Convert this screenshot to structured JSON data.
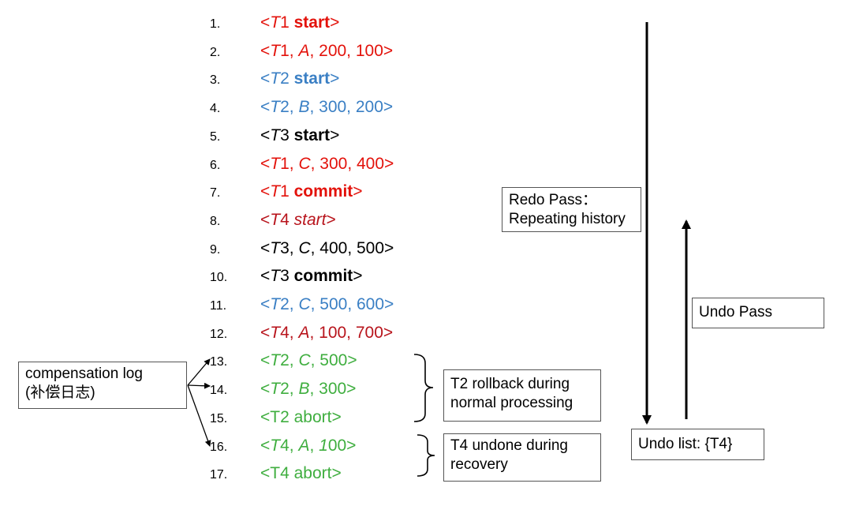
{
  "log": [
    {
      "num": "1.",
      "color": "#e3120b",
      "parts": [
        {
          "t": "<",
          "s": ""
        },
        {
          "t": "T",
          "s": "it"
        },
        {
          "t": "1 ",
          "s": ""
        },
        {
          "t": "start",
          "s": "b"
        },
        {
          "t": ">",
          "s": ""
        }
      ]
    },
    {
      "num": "2.",
      "color": "#e3120b",
      "parts": [
        {
          "t": "<",
          "s": ""
        },
        {
          "t": "T",
          "s": "it"
        },
        {
          "t": "1, ",
          "s": ""
        },
        {
          "t": "A",
          "s": "it"
        },
        {
          "t": ", 200, 100>",
          "s": ""
        }
      ]
    },
    {
      "num": "3.",
      "color": "#3a7fc4",
      "parts": [
        {
          "t": "<",
          "s": ""
        },
        {
          "t": "T",
          "s": "it"
        },
        {
          "t": "2 ",
          "s": ""
        },
        {
          "t": "start",
          "s": "b"
        },
        {
          "t": ">",
          "s": ""
        }
      ]
    },
    {
      "num": "4.",
      "color": "#3a7fc4",
      "parts": [
        {
          "t": "<",
          "s": ""
        },
        {
          "t": "T",
          "s": "it"
        },
        {
          "t": "2, ",
          "s": ""
        },
        {
          "t": "B",
          "s": "it"
        },
        {
          "t": ", 300, 200>",
          "s": ""
        }
      ]
    },
    {
      "num": "5.",
      "color": "#000000",
      "parts": [
        {
          "t": "<",
          "s": ""
        },
        {
          "t": "T",
          "s": "it"
        },
        {
          "t": "3 ",
          "s": ""
        },
        {
          "t": "start",
          "s": "b"
        },
        {
          "t": ">",
          "s": ""
        }
      ]
    },
    {
      "num": "6.",
      "color": "#e3120b",
      "parts": [
        {
          "t": "<",
          "s": ""
        },
        {
          "t": "T",
          "s": "it"
        },
        {
          "t": "1, ",
          "s": ""
        },
        {
          "t": "C",
          "s": "it"
        },
        {
          "t": ", 300, 400>",
          "s": ""
        }
      ]
    },
    {
      "num": "7.",
      "color": "#e3120b",
      "parts": [
        {
          "t": "<",
          "s": ""
        },
        {
          "t": "T",
          "s": "it"
        },
        {
          "t": "1 ",
          "s": ""
        },
        {
          "t": "commit",
          "s": "b"
        },
        {
          "t": ">",
          "s": ""
        }
      ]
    },
    {
      "num": "8.",
      "color": "#b8141c",
      "parts": [
        {
          "t": "<",
          "s": ""
        },
        {
          "t": "T",
          "s": "it"
        },
        {
          "t": "4 ",
          "s": ""
        },
        {
          "t": "start",
          "s": "it"
        },
        {
          "t": ">",
          "s": ""
        }
      ]
    },
    {
      "num": "9.",
      "color": "#000000",
      "parts": [
        {
          "t": "<",
          "s": ""
        },
        {
          "t": "T",
          "s": "it"
        },
        {
          "t": "3, ",
          "s": ""
        },
        {
          "t": "C",
          "s": "it"
        },
        {
          "t": ", 400, 500>",
          "s": ""
        }
      ]
    },
    {
      "num": "10.",
      "color": "#000000",
      "parts": [
        {
          "t": "<",
          "s": ""
        },
        {
          "t": "T",
          "s": "it"
        },
        {
          "t": "3 ",
          "s": ""
        },
        {
          "t": "commit",
          "s": "b"
        },
        {
          "t": ">",
          "s": ""
        }
      ]
    },
    {
      "num": "11.",
      "color": "#3a7fc4",
      "parts": [
        {
          "t": "<",
          "s": ""
        },
        {
          "t": "T",
          "s": "it"
        },
        {
          "t": "2, ",
          "s": ""
        },
        {
          "t": "C",
          "s": "it"
        },
        {
          "t": ", 500, 600>",
          "s": ""
        }
      ]
    },
    {
      "num": "12.",
      "color": "#b8141c",
      "parts": [
        {
          "t": "<",
          "s": ""
        },
        {
          "t": "T",
          "s": "it"
        },
        {
          "t": "4, ",
          "s": ""
        },
        {
          "t": "A",
          "s": "it"
        },
        {
          "t": ", 100, 700>",
          "s": ""
        }
      ]
    },
    {
      "num": "13.",
      "color": "#3fae3f",
      "parts": [
        {
          "t": "<",
          "s": ""
        },
        {
          "t": "T",
          "s": "it"
        },
        {
          "t": "2, ",
          "s": ""
        },
        {
          "t": "C",
          "s": "it"
        },
        {
          "t": ", 500>",
          "s": ""
        }
      ]
    },
    {
      "num": "14.",
      "color": "#3fae3f",
      "parts": [
        {
          "t": "<",
          "s": ""
        },
        {
          "t": "T",
          "s": "it"
        },
        {
          "t": "2, ",
          "s": ""
        },
        {
          "t": "B",
          "s": "it"
        },
        {
          "t": ", 300>",
          "s": ""
        }
      ]
    },
    {
      "num": "15.",
      "color": "#3fae3f",
      "parts": [
        {
          "t": "<T2 abort>",
          "s": ""
        }
      ]
    },
    {
      "num": "16.",
      "color": "#3fae3f",
      "parts": [
        {
          "t": "<",
          "s": ""
        },
        {
          "t": "T",
          "s": "it"
        },
        {
          "t": "4, ",
          "s": ""
        },
        {
          "t": "A",
          "s": "it"
        },
        {
          "t": ", ",
          "s": ""
        },
        {
          "t": "1",
          "s": "it"
        },
        {
          "t": "00>",
          "s": ""
        }
      ]
    },
    {
      "num": "17.",
      "color": "#3fae3f",
      "parts": [
        {
          "t": "<T4 abort>",
          "s": ""
        }
      ]
    }
  ],
  "labels": {
    "compensation_line1": "compensation log",
    "compensation_line2": "(补偿日志)",
    "t2_rollback_line1": "T2 rollback during",
    "t2_rollback_line2": "normal processing",
    "t4_undone_line1": "T4 undone  during",
    "t4_undone_line2": "recovery",
    "redo_line1": "Redo Pass：",
    "redo_line2": "Repeating history",
    "undo_pass": "Undo Pass",
    "undo_list": "Undo  list: {T4}"
  }
}
